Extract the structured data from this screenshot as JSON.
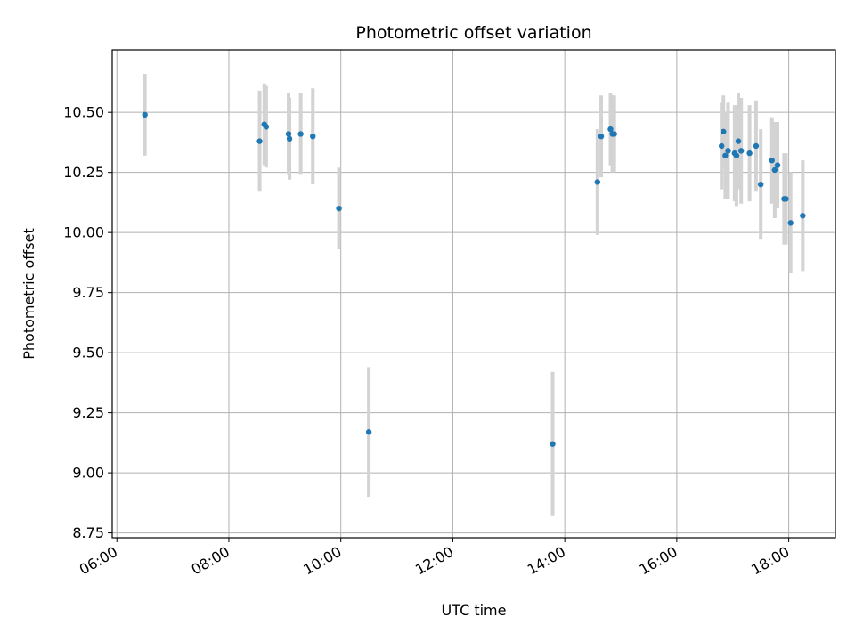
{
  "chart_data": {
    "type": "scatter",
    "title": "Photometric offset variation",
    "xlabel": "UTC time",
    "ylabel": "Photometric offset",
    "x_ticks": [
      "06:00",
      "08:00",
      "10:00",
      "12:00",
      "14:00",
      "16:00",
      "18:00"
    ],
    "y_ticks": [
      "8.75",
      "9.00",
      "9.25",
      "9.50",
      "9.75",
      "10.00",
      "10.25",
      "10.50"
    ],
    "xlim": [
      "05:55",
      "18:50"
    ],
    "ylim": [
      8.73,
      10.76
    ],
    "grid": true,
    "colors": {
      "marker": "#1f77b4",
      "errorbar": "#d3d3d3",
      "grid": "#b0b0b0"
    },
    "series": [
      {
        "points": [
          {
            "x": "06:30",
            "y": 10.49,
            "yerr": 0.17
          },
          {
            "x": "08:33",
            "y": 10.38,
            "yerr": 0.21
          },
          {
            "x": "08:38",
            "y": 10.45,
            "yerr": 0.17
          },
          {
            "x": "08:40",
            "y": 10.44,
            "yerr": 0.17
          },
          {
            "x": "09:04",
            "y": 10.41,
            "yerr": 0.17
          },
          {
            "x": "09:05",
            "y": 10.39,
            "yerr": 0.17
          },
          {
            "x": "09:17",
            "y": 10.41,
            "yerr": 0.17
          },
          {
            "x": "09:30",
            "y": 10.4,
            "yerr": 0.2
          },
          {
            "x": "09:58",
            "y": 10.1,
            "yerr": 0.17
          },
          {
            "x": "10:30",
            "y": 9.17,
            "yerr": 0.27
          },
          {
            "x": "13:47",
            "y": 9.12,
            "yerr": 0.3
          },
          {
            "x": "14:35",
            "y": 10.21,
            "yerr": 0.22
          },
          {
            "x": "14:39",
            "y": 10.4,
            "yerr": 0.17
          },
          {
            "x": "14:49",
            "y": 10.43,
            "yerr": 0.15
          },
          {
            "x": "14:51",
            "y": 10.41,
            "yerr": 0.16
          },
          {
            "x": "14:53",
            "y": 10.41,
            "yerr": 0.16
          },
          {
            "x": "16:48",
            "y": 10.36,
            "yerr": 0.18
          },
          {
            "x": "16:50",
            "y": 10.42,
            "yerr": 0.15
          },
          {
            "x": "16:52",
            "y": 10.32,
            "yerr": 0.18
          },
          {
            "x": "16:55",
            "y": 10.34,
            "yerr": 0.2
          },
          {
            "x": "17:02",
            "y": 10.33,
            "yerr": 0.2
          },
          {
            "x": "17:04",
            "y": 10.32,
            "yerr": 0.21
          },
          {
            "x": "17:06",
            "y": 10.38,
            "yerr": 0.2
          },
          {
            "x": "17:09",
            "y": 10.34,
            "yerr": 0.22
          },
          {
            "x": "17:18",
            "y": 10.33,
            "yerr": 0.2
          },
          {
            "x": "17:25",
            "y": 10.36,
            "yerr": 0.19
          },
          {
            "x": "17:30",
            "y": 10.2,
            "yerr": 0.23
          },
          {
            "x": "17:42",
            "y": 10.3,
            "yerr": 0.18
          },
          {
            "x": "17:45",
            "y": 10.26,
            "yerr": 0.2
          },
          {
            "x": "17:48",
            "y": 10.28,
            "yerr": 0.18
          },
          {
            "x": "17:55",
            "y": 10.14,
            "yerr": 0.19
          },
          {
            "x": "17:57",
            "y": 10.14,
            "yerr": 0.19
          },
          {
            "x": "18:02",
            "y": 10.04,
            "yerr": 0.21
          },
          {
            "x": "18:15",
            "y": 10.07,
            "yerr": 0.23
          }
        ]
      }
    ]
  }
}
